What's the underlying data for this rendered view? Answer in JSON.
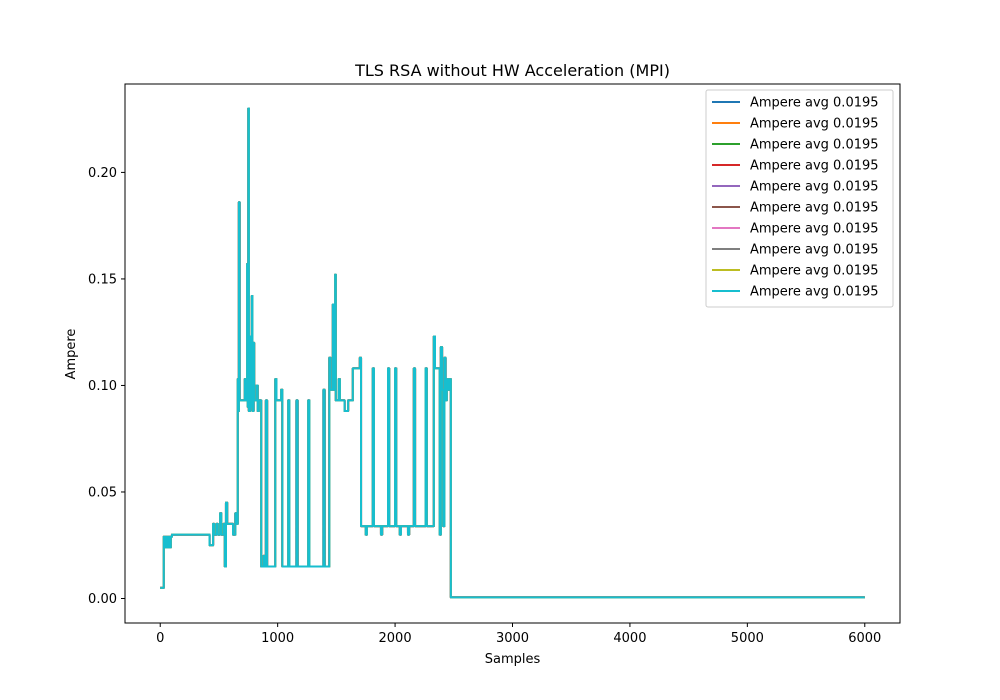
{
  "chart_data": {
    "type": "line",
    "title": "TLS RSA without HW Acceleration (MPI)",
    "xlabel": "Samples",
    "ylabel": "Ampere",
    "xlim": [
      -300,
      6300
    ],
    "ylim": [
      -0.0115,
      0.2415
    ],
    "xticks": [
      0,
      1000,
      2000,
      3000,
      4000,
      5000,
      6000
    ],
    "xtick_labels": [
      "0",
      "1000",
      "2000",
      "3000",
      "4000",
      "5000",
      "6000"
    ],
    "yticks": [
      0.0,
      0.05,
      0.1,
      0.15,
      0.2
    ],
    "ytick_labels": [
      "0.00",
      "0.05",
      "0.10",
      "0.15",
      "0.20"
    ],
    "grid": false,
    "legend_position": "top-right",
    "series": [
      {
        "name": "Ampere avg 0.0195",
        "color": "#1f77b4"
      },
      {
        "name": "Ampere avg 0.0195",
        "color": "#ff7f0e"
      },
      {
        "name": "Ampere avg 0.0195",
        "color": "#2ca02c"
      },
      {
        "name": "Ampere avg 0.0195",
        "color": "#d62728"
      },
      {
        "name": "Ampere avg 0.0195",
        "color": "#9467bd"
      },
      {
        "name": "Ampere avg 0.0195",
        "color": "#8c564b"
      },
      {
        "name": "Ampere avg 0.0195",
        "color": "#e377c2"
      },
      {
        "name": "Ampere avg 0.0195",
        "color": "#7f7f7f"
      },
      {
        "name": "Ampere avg 0.0195",
        "color": "#bcbd22"
      },
      {
        "name": "Ampere avg 0.0195",
        "color": "#17becf"
      }
    ],
    "points": [
      [
        0,
        0.005
      ],
      [
        20,
        0.005
      ],
      [
        30,
        0.005
      ],
      [
        30,
        0.029
      ],
      [
        40,
        0.029
      ],
      [
        40,
        0.024
      ],
      [
        50,
        0.024
      ],
      [
        50,
        0.029
      ],
      [
        60,
        0.029
      ],
      [
        60,
        0.024
      ],
      [
        70,
        0.024
      ],
      [
        70,
        0.029
      ],
      [
        80,
        0.029
      ],
      [
        80,
        0.024
      ],
      [
        90,
        0.024
      ],
      [
        90,
        0.029
      ],
      [
        100,
        0.029
      ],
      [
        100,
        0.03
      ],
      [
        420,
        0.03
      ],
      [
        420,
        0.025
      ],
      [
        450,
        0.025
      ],
      [
        450,
        0.035
      ],
      [
        460,
        0.035
      ],
      [
        460,
        0.03
      ],
      [
        480,
        0.03
      ],
      [
        480,
        0.035
      ],
      [
        490,
        0.035
      ],
      [
        490,
        0.03
      ],
      [
        510,
        0.03
      ],
      [
        510,
        0.04
      ],
      [
        520,
        0.04
      ],
      [
        520,
        0.03
      ],
      [
        540,
        0.03
      ],
      [
        540,
        0.035
      ],
      [
        550,
        0.035
      ],
      [
        550,
        0.015
      ],
      [
        560,
        0.015
      ],
      [
        560,
        0.045
      ],
      [
        570,
        0.045
      ],
      [
        570,
        0.035
      ],
      [
        620,
        0.035
      ],
      [
        620,
        0.03
      ],
      [
        640,
        0.03
      ],
      [
        640,
        0.04
      ],
      [
        650,
        0.04
      ],
      [
        650,
        0.035
      ],
      [
        660,
        0.035
      ],
      [
        660,
        0.103
      ],
      [
        665,
        0.103
      ],
      [
        665,
        0.088
      ],
      [
        670,
        0.088
      ],
      [
        670,
        0.186
      ],
      [
        676,
        0.186
      ],
      [
        676,
        0.093
      ],
      [
        720,
        0.093
      ],
      [
        720,
        0.103
      ],
      [
        730,
        0.103
      ],
      [
        730,
        0.093
      ],
      [
        740,
        0.093
      ],
      [
        740,
        0.157
      ],
      [
        745,
        0.157
      ],
      [
        745,
        0.09
      ],
      [
        750,
        0.09
      ],
      [
        750,
        0.23
      ],
      [
        755,
        0.23
      ],
      [
        755,
        0.088
      ],
      [
        765,
        0.088
      ],
      [
        765,
        0.123
      ],
      [
        770,
        0.123
      ],
      [
        770,
        0.09
      ],
      [
        780,
        0.09
      ],
      [
        780,
        0.142
      ],
      [
        785,
        0.142
      ],
      [
        785,
        0.088
      ],
      [
        795,
        0.088
      ],
      [
        795,
        0.12
      ],
      [
        800,
        0.12
      ],
      [
        800,
        0.093
      ],
      [
        820,
        0.093
      ],
      [
        820,
        0.1
      ],
      [
        830,
        0.1
      ],
      [
        830,
        0.088
      ],
      [
        840,
        0.088
      ],
      [
        840,
        0.093
      ],
      [
        860,
        0.093
      ],
      [
        860,
        0.015
      ],
      [
        880,
        0.015
      ],
      [
        880,
        0.02
      ],
      [
        885,
        0.02
      ],
      [
        885,
        0.015
      ],
      [
        900,
        0.015
      ],
      [
        900,
        0.093
      ],
      [
        910,
        0.093
      ],
      [
        910,
        0.015
      ],
      [
        980,
        0.015
      ],
      [
        980,
        0.103
      ],
      [
        990,
        0.103
      ],
      [
        990,
        0.093
      ],
      [
        1030,
        0.093
      ],
      [
        1030,
        0.098
      ],
      [
        1040,
        0.098
      ],
      [
        1040,
        0.015
      ],
      [
        1090,
        0.015
      ],
      [
        1090,
        0.093
      ],
      [
        1100,
        0.093
      ],
      [
        1100,
        0.015
      ],
      [
        1160,
        0.015
      ],
      [
        1160,
        0.093
      ],
      [
        1170,
        0.093
      ],
      [
        1170,
        0.015
      ],
      [
        1260,
        0.015
      ],
      [
        1260,
        0.093
      ],
      [
        1270,
        0.093
      ],
      [
        1270,
        0.015
      ],
      [
        1390,
        0.015
      ],
      [
        1390,
        0.098
      ],
      [
        1400,
        0.098
      ],
      [
        1400,
        0.015
      ],
      [
        1440,
        0.015
      ],
      [
        1440,
        0.113
      ],
      [
        1450,
        0.113
      ],
      [
        1450,
        0.098
      ],
      [
        1470,
        0.098
      ],
      [
        1470,
        0.138
      ],
      [
        1480,
        0.138
      ],
      [
        1480,
        0.098
      ],
      [
        1490,
        0.098
      ],
      [
        1490,
        0.152
      ],
      [
        1495,
        0.152
      ],
      [
        1495,
        0.093
      ],
      [
        1520,
        0.093
      ],
      [
        1520,
        0.103
      ],
      [
        1530,
        0.103
      ],
      [
        1530,
        0.093
      ],
      [
        1570,
        0.093
      ],
      [
        1570,
        0.088
      ],
      [
        1600,
        0.088
      ],
      [
        1600,
        0.093
      ],
      [
        1640,
        0.093
      ],
      [
        1640,
        0.108
      ],
      [
        1700,
        0.108
      ],
      [
        1700,
        0.113
      ],
      [
        1710,
        0.113
      ],
      [
        1710,
        0.034
      ],
      [
        1750,
        0.034
      ],
      [
        1750,
        0.03
      ],
      [
        1760,
        0.03
      ],
      [
        1760,
        0.034
      ],
      [
        1810,
        0.034
      ],
      [
        1810,
        0.108
      ],
      [
        1820,
        0.108
      ],
      [
        1820,
        0.034
      ],
      [
        1880,
        0.034
      ],
      [
        1880,
        0.03
      ],
      [
        1890,
        0.03
      ],
      [
        1890,
        0.034
      ],
      [
        1940,
        0.034
      ],
      [
        1940,
        0.108
      ],
      [
        1950,
        0.108
      ],
      [
        1950,
        0.034
      ],
      [
        2000,
        0.034
      ],
      [
        2000,
        0.108
      ],
      [
        2010,
        0.108
      ],
      [
        2010,
        0.034
      ],
      [
        2040,
        0.034
      ],
      [
        2040,
        0.03
      ],
      [
        2050,
        0.03
      ],
      [
        2050,
        0.034
      ],
      [
        2110,
        0.034
      ],
      [
        2110,
        0.03
      ],
      [
        2120,
        0.03
      ],
      [
        2120,
        0.034
      ],
      [
        2160,
        0.034
      ],
      [
        2160,
        0.108
      ],
      [
        2170,
        0.108
      ],
      [
        2170,
        0.034
      ],
      [
        2260,
        0.034
      ],
      [
        2260,
        0.108
      ],
      [
        2270,
        0.108
      ],
      [
        2270,
        0.034
      ],
      [
        2330,
        0.034
      ],
      [
        2330,
        0.123
      ],
      [
        2340,
        0.123
      ],
      [
        2340,
        0.108
      ],
      [
        2380,
        0.108
      ],
      [
        2380,
        0.03
      ],
      [
        2390,
        0.03
      ],
      [
        2390,
        0.118
      ],
      [
        2400,
        0.118
      ],
      [
        2400,
        0.098
      ],
      [
        2410,
        0.098
      ],
      [
        2410,
        0.034
      ],
      [
        2420,
        0.034
      ],
      [
        2420,
        0.113
      ],
      [
        2430,
        0.113
      ],
      [
        2430,
        0.093
      ],
      [
        2440,
        0.093
      ],
      [
        2440,
        0.103
      ],
      [
        2450,
        0.103
      ],
      [
        2450,
        0.098
      ],
      [
        2460,
        0.098
      ],
      [
        2460,
        0.103
      ],
      [
        2475,
        0.103
      ],
      [
        2475,
        0.0005
      ],
      [
        6000,
        0.0005
      ]
    ]
  }
}
